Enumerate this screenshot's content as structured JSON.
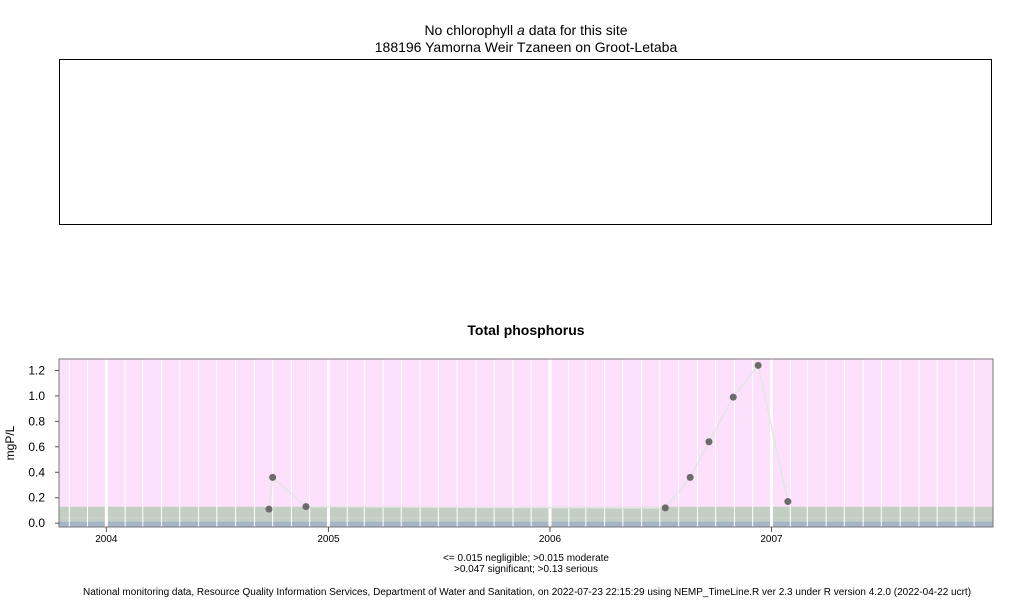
{
  "header": {
    "line1_prefix": "No chlorophyll ",
    "line1_italic": "a",
    "line1_suffix": " data for this site",
    "line2": "188196 Yamorna Weir Tzaneen on Groot-Letaba"
  },
  "chart_data": {
    "type": "scatter",
    "title": "Total phosphorus",
    "xlabel": "",
    "ylabel": "mgP/L",
    "ylim": [
      -0.03,
      1.29
    ],
    "xlim": [
      "2003-10-15",
      "2008-01-01"
    ],
    "yticks": [
      0.0,
      0.2,
      0.4,
      0.6,
      0.8,
      1.0,
      1.2
    ],
    "ytick_labels": [
      "0.0",
      "0.2",
      "0.4",
      "0.6",
      "0.8",
      "1.0",
      "1.2"
    ],
    "xticks": [
      "2004-01-01",
      "2005-01-01",
      "2006-01-01",
      "2007-01-01"
    ],
    "xtick_labels": [
      "2004",
      "2005",
      "2006",
      "2007"
    ],
    "series": [
      {
        "points": [
          {
            "x": "2004-09-25",
            "y": 0.11
          },
          {
            "x": "2004-10-01",
            "y": 0.36
          },
          {
            "x": "2004-11-25",
            "y": 0.13
          },
          {
            "x": "2006-07-10",
            "y": 0.12
          },
          {
            "x": "2006-08-20",
            "y": 0.36
          },
          {
            "x": "2006-09-20",
            "y": 0.64
          },
          {
            "x": "2006-10-30",
            "y": 0.99
          },
          {
            "x": "2006-12-10",
            "y": 1.24
          },
          {
            "x": "2007-01-28",
            "y": 0.17
          }
        ]
      }
    ],
    "bands": [
      {
        "from": -0.03,
        "to": 0.015,
        "color": "#a6b6c9"
      },
      {
        "from": 0.015,
        "to": 0.047,
        "color": "#c3cfc3"
      },
      {
        "from": 0.047,
        "to": 0.13,
        "color": "#c3cfc3"
      },
      {
        "from": 0.13,
        "to": 1.29,
        "color": "#fce0fc"
      }
    ],
    "point_color": "#6b6b6b",
    "line_color": "#e5e5e5",
    "grid": true
  },
  "legend": {
    "line1": "<= 0.015 negligible; >0.015 moderate",
    "line2": ">0.047 significant; >0.13 serious"
  },
  "footer": "National monitoring data, Resource Quality Information Services, Department of Water and Sanitation, on 2022-07-23 22:15:29 using NEMP_TimeLine.R ver 2.3 under R version 4.2.0 (2022-04-22 ucrt)"
}
